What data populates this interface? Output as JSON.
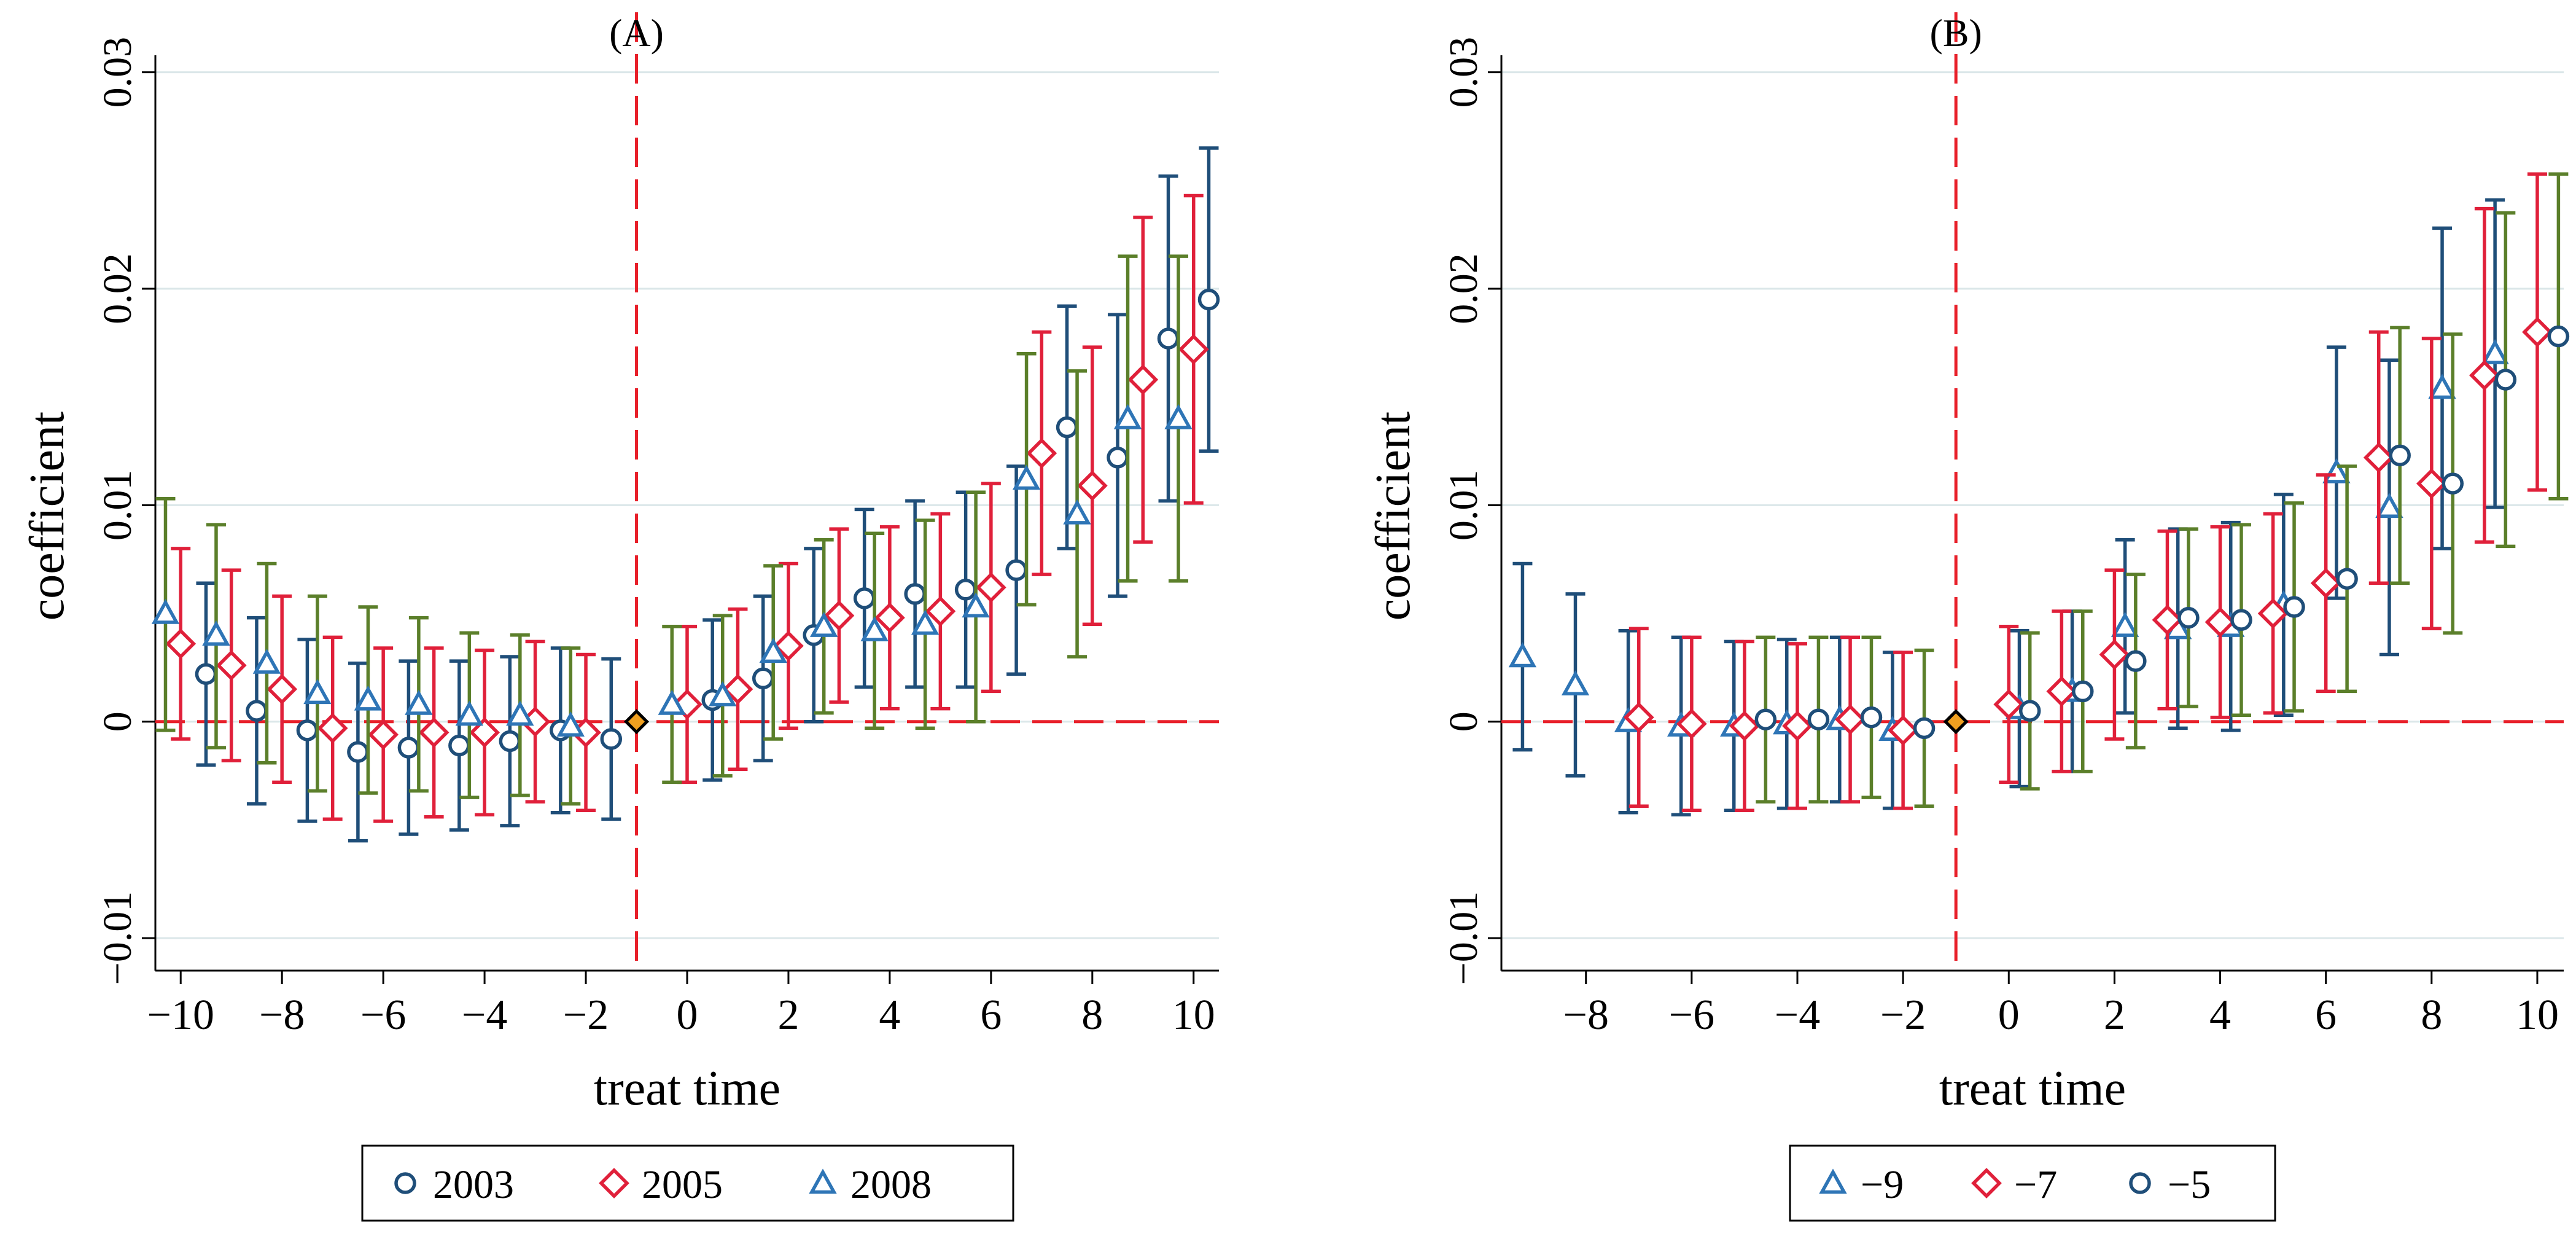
{
  "chart_data": [
    {
      "type": "scatter",
      "title": "(A)",
      "xlabel": "treat time",
      "ylabel": "coefficient",
      "xlim": [
        -10.5,
        10.5
      ],
      "ylim": [
        -0.0115,
        0.0305
      ],
      "xticks": [
        -10,
        -8,
        -6,
        -4,
        -2,
        0,
        2,
        4,
        6,
        8,
        10
      ],
      "xtick_labels": [
        "−10",
        "−8",
        "−6",
        "−4",
        "−2",
        "0",
        "2",
        "4",
        "6",
        "8",
        "10"
      ],
      "yticks": [
        -0.01,
        0,
        0.01,
        0.02,
        0.03
      ],
      "ytick_labels": [
        "−0.01",
        "0",
        "0.01",
        "0.02",
        "0.03"
      ],
      "reference_lines": {
        "x": -1,
        "y": 0
      },
      "reference_point": {
        "x": -1,
        "y": 0
      },
      "legend_position": "bottom-center",
      "series": [
        {
          "name": "2003",
          "marker": "circle",
          "color": "#1f4e79",
          "points": [
            {
              "x": -9.5,
              "y": 0.0022,
              "lo": -0.002,
              "hi": 0.0064
            },
            {
              "x": -8.5,
              "y": 0.0005,
              "lo": -0.0038,
              "hi": 0.0048
            },
            {
              "x": -7.5,
              "y": -0.0004,
              "lo": -0.0046,
              "hi": 0.0038
            },
            {
              "x": -6.5,
              "y": -0.0014,
              "lo": -0.0055,
              "hi": 0.0027
            },
            {
              "x": -5.5,
              "y": -0.0012,
              "lo": -0.0052,
              "hi": 0.0028
            },
            {
              "x": -4.5,
              "y": -0.0011,
              "lo": -0.005,
              "hi": 0.0028
            },
            {
              "x": -3.5,
              "y": -0.0009,
              "lo": -0.0048,
              "hi": 0.003
            },
            {
              "x": -2.5,
              "y": -0.0004,
              "lo": -0.0042,
              "hi": 0.0034
            },
            {
              "x": -1.5,
              "y": -0.0008,
              "lo": -0.0045,
              "hi": 0.0029
            },
            {
              "x": 0.5,
              "y": 0.001,
              "lo": -0.0027,
              "hi": 0.0047
            },
            {
              "x": 1.5,
              "y": 0.002,
              "lo": -0.0018,
              "hi": 0.0058
            },
            {
              "x": 2.5,
              "y": 0.004,
              "lo": 0.0,
              "hi": 0.008
            },
            {
              "x": 3.5,
              "y": 0.0057,
              "lo": 0.0016,
              "hi": 0.0098
            },
            {
              "x": 4.5,
              "y": 0.0059,
              "lo": 0.0016,
              "hi": 0.0102
            },
            {
              "x": 5.5,
              "y": 0.0061,
              "lo": 0.0016,
              "hi": 0.0106
            },
            {
              "x": 6.5,
              "y": 0.007,
              "lo": 0.0022,
              "hi": 0.0118
            },
            {
              "x": 7.5,
              "y": 0.0136,
              "lo": 0.008,
              "hi": 0.0192
            },
            {
              "x": 8.5,
              "y": 0.0122,
              "lo": 0.0058,
              "hi": 0.0188
            },
            {
              "x": 9.5,
              "y": 0.0177,
              "lo": 0.0102,
              "hi": 0.0252
            },
            {
              "x": 10.3,
              "y": 0.0195,
              "lo": 0.0125,
              "hi": 0.0265
            }
          ]
        },
        {
          "name": "2005",
          "marker": "diamond",
          "color": "#e0203a",
          "points": [
            {
              "x": -10,
              "y": 0.0036,
              "lo": -0.0008,
              "hi": 0.008
            },
            {
              "x": -9,
              "y": 0.0026,
              "lo": -0.0018,
              "hi": 0.007
            },
            {
              "x": -8,
              "y": 0.0015,
              "lo": -0.0028,
              "hi": 0.0058
            },
            {
              "x": -7,
              "y": -0.0003,
              "lo": -0.0045,
              "hi": 0.0039
            },
            {
              "x": -6,
              "y": -0.0006,
              "lo": -0.0046,
              "hi": 0.0034
            },
            {
              "x": -5,
              "y": -0.0005,
              "lo": -0.0044,
              "hi": 0.0034
            },
            {
              "x": -4,
              "y": -0.0005,
              "lo": -0.0043,
              "hi": 0.0033
            },
            {
              "x": -3,
              "y": 0.0,
              "lo": -0.0037,
              "hi": 0.0037
            },
            {
              "x": -2,
              "y": -0.0005,
              "lo": -0.0041,
              "hi": 0.0031
            },
            {
              "x": 0,
              "y": 0.0008,
              "lo": -0.0028,
              "hi": 0.0044
            },
            {
              "x": 1,
              "y": 0.0015,
              "lo": -0.0022,
              "hi": 0.0052
            },
            {
              "x": 2,
              "y": 0.0035,
              "lo": -0.0003,
              "hi": 0.0073
            },
            {
              "x": 3,
              "y": 0.0049,
              "lo": 0.0009,
              "hi": 0.0089
            },
            {
              "x": 4,
              "y": 0.0048,
              "lo": 0.0006,
              "hi": 0.009
            },
            {
              "x": 5,
              "y": 0.0051,
              "lo": 0.0006,
              "hi": 0.0096
            },
            {
              "x": 6,
              "y": 0.0062,
              "lo": 0.0014,
              "hi": 0.011
            },
            {
              "x": 7,
              "y": 0.0124,
              "lo": 0.0068,
              "hi": 0.018
            },
            {
              "x": 8,
              "y": 0.0109,
              "lo": 0.0045,
              "hi": 0.0173
            },
            {
              "x": 9,
              "y": 0.0158,
              "lo": 0.0083,
              "hi": 0.0233
            },
            {
              "x": 10,
              "y": 0.0172,
              "lo": 0.0101,
              "hi": 0.0243
            }
          ]
        },
        {
          "name": "2008",
          "marker": "triangle",
          "color": "#2e75b6",
          "whisker_color": "#5b7f2a",
          "points": [
            {
              "x": -10.3,
              "y": 0.005,
              "lo": -0.0004,
              "hi": 0.0103
            },
            {
              "x": -9.3,
              "y": 0.004,
              "lo": -0.0012,
              "hi": 0.0091
            },
            {
              "x": -8.3,
              "y": 0.0027,
              "lo": -0.0019,
              "hi": 0.0073
            },
            {
              "x": -7.3,
              "y": 0.0013,
              "lo": -0.0032,
              "hi": 0.0058
            },
            {
              "x": -6.3,
              "y": 0.001,
              "lo": -0.0033,
              "hi": 0.0053
            },
            {
              "x": -5.3,
              "y": 0.0008,
              "lo": -0.0032,
              "hi": 0.0048
            },
            {
              "x": -4.3,
              "y": 0.0003,
              "lo": -0.0035,
              "hi": 0.0041
            },
            {
              "x": -3.3,
              "y": 0.0003,
              "lo": -0.0034,
              "hi": 0.004
            },
            {
              "x": -2.3,
              "y": -0.0002,
              "lo": -0.0038,
              "hi": 0.0034
            },
            {
              "x": -0.3,
              "y": 0.0008,
              "lo": -0.0028,
              "hi": 0.0044
            },
            {
              "x": 0.7,
              "y": 0.0012,
              "lo": -0.0025,
              "hi": 0.0049
            },
            {
              "x": 1.7,
              "y": 0.0032,
              "lo": -0.0008,
              "hi": 0.0072
            },
            {
              "x": 2.7,
              "y": 0.0044,
              "lo": 0.0004,
              "hi": 0.0084
            },
            {
              "x": 3.7,
              "y": 0.0042,
              "lo": -0.0003,
              "hi": 0.0087
            },
            {
              "x": 4.7,
              "y": 0.0045,
              "lo": -0.0003,
              "hi": 0.0093
            },
            {
              "x": 5.7,
              "y": 0.0053,
              "lo": 0.0,
              "hi": 0.0106
            },
            {
              "x": 6.7,
              "y": 0.0112,
              "lo": 0.0054,
              "hi": 0.017
            },
            {
              "x": 7.7,
              "y": 0.0096,
              "lo": 0.003,
              "hi": 0.0162
            },
            {
              "x": 8.7,
              "y": 0.014,
              "lo": 0.0065,
              "hi": 0.0215
            },
            {
              "x": 9.7,
              "y": 0.014,
              "lo": 0.0065,
              "hi": 0.0215
            }
          ]
        }
      ]
    },
    {
      "type": "scatter",
      "title": "(B)",
      "xlabel": "treat time",
      "ylabel": "coefficient",
      "xlim": [
        -9.6,
        10.5
      ],
      "ylim": [
        -0.0115,
        0.0305
      ],
      "xticks": [
        -8,
        -6,
        -4,
        -2,
        0,
        2,
        4,
        6,
        8,
        10
      ],
      "xtick_labels": [
        "−8",
        "−6",
        "−4",
        "−2",
        "0",
        "2",
        "4",
        "6",
        "8",
        "10"
      ],
      "yticks": [
        -0.01,
        0,
        0.01,
        0.02,
        0.03
      ],
      "ytick_labels": [
        "−0.01",
        "0",
        "0.01",
        "0.02",
        "0.03"
      ],
      "reference_lines": {
        "x": -1,
        "y": 0
      },
      "reference_point": {
        "x": -1,
        "y": 0
      },
      "legend_position": "bottom-center",
      "series": [
        {
          "name": "−9",
          "marker": "triangle",
          "color": "#2e75b6",
          "whisker_color": "#1f4e79",
          "points": [
            {
              "x": -9.2,
              "y": 0.003,
              "lo": -0.0013,
              "hi": 0.0073
            },
            {
              "x": -8.2,
              "y": 0.0017,
              "lo": -0.0025,
              "hi": 0.0059
            },
            {
              "x": -7.2,
              "y": 0.0,
              "lo": -0.0042,
              "hi": 0.0042
            },
            {
              "x": -6.2,
              "y": -0.0002,
              "lo": -0.0043,
              "hi": 0.0039
            },
            {
              "x": -5.2,
              "y": -0.0002,
              "lo": -0.0041,
              "hi": 0.0037
            },
            {
              "x": -4.2,
              "y": -0.0001,
              "lo": -0.004,
              "hi": 0.0038
            },
            {
              "x": -3.2,
              "y": 0.0001,
              "lo": -0.0037,
              "hi": 0.0039
            },
            {
              "x": -2.2,
              "y": -0.0004,
              "lo": -0.004,
              "hi": 0.0032
            },
            {
              "x": 0.2,
              "y": 0.0006,
              "lo": -0.003,
              "hi": 0.0042
            },
            {
              "x": 1.2,
              "y": 0.0014,
              "lo": -0.0023,
              "hi": 0.0051
            },
            {
              "x": 2.2,
              "y": 0.0044,
              "lo": 0.0004,
              "hi": 0.0084
            },
            {
              "x": 3.2,
              "y": 0.0043,
              "lo": -0.0003,
              "hi": 0.0089
            },
            {
              "x": 4.2,
              "y": 0.0044,
              "lo": -0.0004,
              "hi": 0.0092
            },
            {
              "x": 5.2,
              "y": 0.0054,
              "lo": 0.0003,
              "hi": 0.0105
            },
            {
              "x": 6.2,
              "y": 0.0115,
              "lo": 0.0057,
              "hi": 0.0173
            },
            {
              "x": 7.2,
              "y": 0.0099,
              "lo": 0.0031,
              "hi": 0.0167
            },
            {
              "x": 8.2,
              "y": 0.0154,
              "lo": 0.008,
              "hi": 0.0228
            },
            {
              "x": 9.2,
              "y": 0.017,
              "lo": 0.0099,
              "hi": 0.0241
            }
          ]
        },
        {
          "name": "−7",
          "marker": "diamond",
          "color": "#e0203a",
          "points": [
            {
              "x": -7,
              "y": 0.0002,
              "lo": -0.0039,
              "hi": 0.0043
            },
            {
              "x": -6,
              "y": -0.0001,
              "lo": -0.0041,
              "hi": 0.0039
            },
            {
              "x": -5,
              "y": -0.0002,
              "lo": -0.0041,
              "hi": 0.0037
            },
            {
              "x": -4,
              "y": -0.0002,
              "lo": -0.004,
              "hi": 0.0036
            },
            {
              "x": -3,
              "y": 0.0001,
              "lo": -0.0037,
              "hi": 0.0039
            },
            {
              "x": -2,
              "y": -0.0004,
              "lo": -0.004,
              "hi": 0.0032
            },
            {
              "x": 0,
              "y": 0.0008,
              "lo": -0.0028,
              "hi": 0.0044
            },
            {
              "x": 1,
              "y": 0.0014,
              "lo": -0.0023,
              "hi": 0.0051
            },
            {
              "x": 2,
              "y": 0.0031,
              "lo": -0.0008,
              "hi": 0.007
            },
            {
              "x": 3,
              "y": 0.0047,
              "lo": 0.0006,
              "hi": 0.0088
            },
            {
              "x": 4,
              "y": 0.0046,
              "lo": 0.0002,
              "hi": 0.009
            },
            {
              "x": 5,
              "y": 0.005,
              "lo": 0.0004,
              "hi": 0.0096
            },
            {
              "x": 6,
              "y": 0.0064,
              "lo": 0.0014,
              "hi": 0.0114
            },
            {
              "x": 7,
              "y": 0.0122,
              "lo": 0.0064,
              "hi": 0.018
            },
            {
              "x": 8,
              "y": 0.011,
              "lo": 0.0043,
              "hi": 0.0177
            },
            {
              "x": 9,
              "y": 0.016,
              "lo": 0.0083,
              "hi": 0.0237
            },
            {
              "x": 10,
              "y": 0.018,
              "lo": 0.0107,
              "hi": 0.0253
            }
          ]
        },
        {
          "name": "−5",
          "marker": "circle",
          "color": "#1f4e79",
          "whisker_color": "#5b7f2a",
          "points": [
            {
              "x": -4.6,
              "y": 0.0001,
              "lo": -0.0037,
              "hi": 0.0039
            },
            {
              "x": -3.6,
              "y": 0.0001,
              "lo": -0.0037,
              "hi": 0.0039
            },
            {
              "x": -2.6,
              "y": 0.0002,
              "lo": -0.0035,
              "hi": 0.0039
            },
            {
              "x": -1.6,
              "y": -0.0003,
              "lo": -0.0039,
              "hi": 0.0033
            },
            {
              "x": 0.4,
              "y": 0.0005,
              "lo": -0.0031,
              "hi": 0.0041
            },
            {
              "x": 1.4,
              "y": 0.0014,
              "lo": -0.0023,
              "hi": 0.0051
            },
            {
              "x": 2.4,
              "y": 0.0028,
              "lo": -0.0012,
              "hi": 0.0068
            },
            {
              "x": 3.4,
              "y": 0.0048,
              "lo": 0.0007,
              "hi": 0.0089
            },
            {
              "x": 4.4,
              "y": 0.0047,
              "lo": 0.0003,
              "hi": 0.0091
            },
            {
              "x": 5.4,
              "y": 0.0053,
              "lo": 0.0005,
              "hi": 0.0101
            },
            {
              "x": 6.4,
              "y": 0.0066,
              "lo": 0.0014,
              "hi": 0.0118
            },
            {
              "x": 7.4,
              "y": 0.0123,
              "lo": 0.0064,
              "hi": 0.0182
            },
            {
              "x": 8.4,
              "y": 0.011,
              "lo": 0.0041,
              "hi": 0.0179
            },
            {
              "x": 9.4,
              "y": 0.0158,
              "lo": 0.0081,
              "hi": 0.0235
            },
            {
              "x": 10.4,
              "y": 0.0178,
              "lo": 0.0103,
              "hi": 0.0253
            }
          ]
        }
      ]
    }
  ]
}
